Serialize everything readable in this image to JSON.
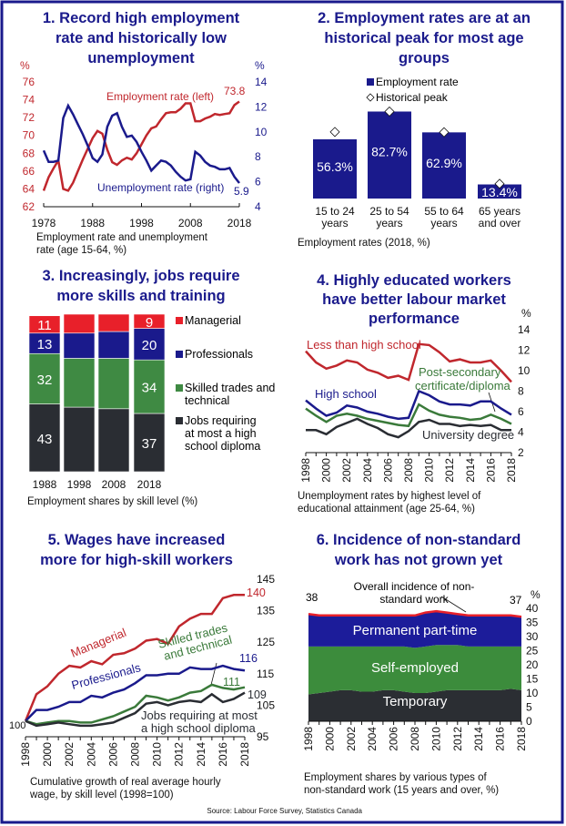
{
  "colors": {
    "navy": "#1a1a8c",
    "red": "#c0272d",
    "bright_red": "#e8202a",
    "green": "#3a7a3a",
    "green_fill": "#3f8a43",
    "dark": "#2a2d33"
  },
  "source": "Source: Labour Force Survey, Statistics Canada",
  "chart_data": [
    {
      "type": "line",
      "title": [
        "1. Record high employment",
        "rate and historically low",
        "unemployment"
      ],
      "caption": [
        "Employment rate and unemployment",
        "rate (age 15-64, %)"
      ],
      "x": [
        1978,
        1979,
        1980,
        1981,
        1982,
        1983,
        1984,
        1985,
        1986,
        1987,
        1988,
        1989,
        1990,
        1991,
        1992,
        1993,
        1994,
        1995,
        1996,
        1997,
        1998,
        1999,
        2000,
        2001,
        2002,
        2003,
        2004,
        2005,
        2006,
        2007,
        2008,
        2009,
        2010,
        2011,
        2012,
        2013,
        2014,
        2015,
        2016,
        2017,
        2018
      ],
      "xticks": [
        "1978",
        "1988",
        "1998",
        "2008",
        "2018"
      ],
      "ylim_left": [
        62,
        76
      ],
      "yticks_left": [
        "62",
        "64",
        "66",
        "68",
        "70",
        "72",
        "74",
        "76"
      ],
      "ylabel_left": "%",
      "ylim_right": [
        4,
        14
      ],
      "yticks_right": [
        "4",
        "6",
        "8",
        "10",
        "12",
        "14"
      ],
      "ylabel_right": "%",
      "series": [
        {
          "name": "Employment rate (left)",
          "axis": "left",
          "color": "#c0272d",
          "end_label": "73.8",
          "values": [
            63.8,
            65.3,
            66.3,
            67.2,
            64.0,
            63.8,
            64.7,
            66.0,
            67.3,
            68.5,
            69.7,
            70.5,
            70.2,
            68.4,
            67.0,
            66.7,
            67.2,
            67.5,
            67.3,
            68.0,
            69.0,
            70.0,
            70.8,
            71.0,
            71.8,
            72.5,
            72.6,
            72.6,
            73.0,
            73.6,
            73.6,
            71.6,
            71.6,
            71.9,
            72.1,
            72.4,
            72.3,
            72.4,
            72.5,
            73.4,
            73.8
          ]
        },
        {
          "name": "Unemployment rate (right)",
          "axis": "right",
          "color": "#1a1a8c",
          "end_label": "5.9",
          "values": [
            8.5,
            7.6,
            7.6,
            7.7,
            11.1,
            12.1,
            11.4,
            10.6,
            9.8,
            8.9,
            7.9,
            7.6,
            8.2,
            10.4,
            11.3,
            11.5,
            10.4,
            9.6,
            9.7,
            9.2,
            8.4,
            7.7,
            6.9,
            7.3,
            7.7,
            7.6,
            7.3,
            6.8,
            6.4,
            6.1,
            6.2,
            8.4,
            8.1,
            7.6,
            7.3,
            7.2,
            7.0,
            7.0,
            7.1,
            6.4,
            5.9
          ]
        }
      ]
    },
    {
      "type": "bar",
      "title": [
        "2. Employment rates are at an",
        "historical peak for most age",
        "groups"
      ],
      "caption": "Employment rates (2018, %)",
      "categories": [
        [
          "15 to 24",
          "years"
        ],
        [
          "25 to 54",
          "years"
        ],
        [
          "55 to 64",
          "years"
        ],
        [
          "65 years",
          "and over"
        ]
      ],
      "ylim": [
        0,
        100
      ],
      "series": [
        {
          "name": "Employment rate",
          "color": "#1a1a8c",
          "values": [
            56.3,
            82.7,
            62.9,
            13.4
          ],
          "labels": [
            "56.3%",
            "82.7%",
            "62.9%",
            "13.4%"
          ]
        },
        {
          "name": "Historical peak",
          "marker": "diamond",
          "values": [
            63.3,
            82.7,
            63.0,
            14.0
          ]
        }
      ]
    },
    {
      "type": "bar",
      "stacked": true,
      "title": [
        "3. Increasingly, jobs require",
        "more skills and training"
      ],
      "caption": "Employment shares by skill level (%)",
      "categories": [
        "1988",
        "1998",
        "2008",
        "2018"
      ],
      "ylim": [
        0,
        100
      ],
      "series": [
        {
          "name": "Jobs requiring at most a high school diploma",
          "legend": [
            "Jobs requiring",
            "at most a high",
            "school diploma"
          ],
          "color": "#2a2d33",
          "values": [
            43,
            41,
            40,
            37
          ],
          "labels": [
            "43",
            "",
            "",
            "37"
          ]
        },
        {
          "name": "Skilled trades and technical",
          "legend": [
            "Skilled trades and",
            "technical"
          ],
          "color": "#3f8a43",
          "values": [
            32,
            31,
            32,
            34
          ],
          "labels": [
            "32",
            "",
            "",
            "34"
          ]
        },
        {
          "name": "Professionals",
          "legend": [
            "Professionals"
          ],
          "color": "#1a1a8c",
          "values": [
            13,
            16,
            17,
            20
          ],
          "labels": [
            "13",
            "",
            "",
            "20"
          ]
        },
        {
          "name": "Managerial",
          "legend": [
            "Managerial"
          ],
          "color": "#e8202a",
          "values": [
            11,
            12,
            11,
            9
          ],
          "labels": [
            "11",
            "",
            "",
            "9"
          ]
        }
      ]
    },
    {
      "type": "line",
      "title": [
        "4. Highly educated workers",
        "have better labour market",
        "performance"
      ],
      "caption": [
        "Unemployment rates by highest level of",
        "educational attainment (age 25-64, %)"
      ],
      "x": [
        1998,
        1999,
        2000,
        2001,
        2002,
        2003,
        2004,
        2005,
        2006,
        2007,
        2008,
        2009,
        2010,
        2011,
        2012,
        2013,
        2014,
        2015,
        2016,
        2017,
        2018
      ],
      "xticks": [
        "1998",
        "2000",
        "2002",
        "2004",
        "2006",
        "2008",
        "2010",
        "2012",
        "2014",
        "2016",
        "2018"
      ],
      "ylim": [
        2,
        14
      ],
      "yticks": [
        "2",
        "4",
        "6",
        "8",
        "10",
        "12",
        "14"
      ],
      "ylabel": "%",
      "series": [
        {
          "name": "Less than high school",
          "label": [
            "Less than high school"
          ],
          "color": "#c0272d",
          "values": [
            11.9,
            10.8,
            10.2,
            10.5,
            11.0,
            10.8,
            10.1,
            9.8,
            9.3,
            9.5,
            9.1,
            12.6,
            12.5,
            11.8,
            10.9,
            11.1,
            10.8,
            10.8,
            11.0,
            10.0,
            8.9
          ]
        },
        {
          "name": "High school",
          "label": [
            "High school"
          ],
          "color": "#1a1a8c",
          "values": [
            7.1,
            6.3,
            5.6,
            5.9,
            6.6,
            6.4,
            6.0,
            5.8,
            5.5,
            5.3,
            5.4,
            8.0,
            7.6,
            7.0,
            6.7,
            6.7,
            6.6,
            7.0,
            7.0,
            6.3,
            5.7
          ]
        },
        {
          "name": "Post-secondary certificate/diploma",
          "label": [
            "Post-secondary",
            "certificate/diploma"
          ],
          "color": "#3a7a3a",
          "values": [
            6.3,
            5.6,
            5.0,
            5.6,
            5.8,
            5.6,
            5.3,
            5.1,
            4.9,
            4.7,
            4.6,
            6.7,
            6.1,
            5.7,
            5.5,
            5.4,
            5.2,
            5.3,
            5.7,
            5.3,
            4.8
          ]
        },
        {
          "name": "University degree",
          "label": [
            "University degree"
          ],
          "color": "#2a2d33",
          "values": [
            4.2,
            4.2,
            3.8,
            4.5,
            4.9,
            5.3,
            4.8,
            4.4,
            3.8,
            3.5,
            4.1,
            5.0,
            5.2,
            4.8,
            4.8,
            4.6,
            4.7,
            4.6,
            4.7,
            4.2,
            4.2
          ]
        }
      ]
    },
    {
      "type": "line",
      "title": [
        "5. Wages have increased",
        "more for high-skill workers"
      ],
      "caption": [
        "Cumulative growth of real average hourly",
        "wage, by skill level (1998=100)"
      ],
      "x": [
        1998,
        1999,
        2000,
        2001,
        2002,
        2003,
        2004,
        2005,
        2006,
        2007,
        2008,
        2009,
        2010,
        2011,
        2012,
        2013,
        2014,
        2015,
        2016,
        2017,
        2018
      ],
      "xticks": [
        "1998",
        "2000",
        "2002",
        "2004",
        "2006",
        "2008",
        "2010",
        "2012",
        "2014",
        "2016",
        "2018"
      ],
      "ylim": [
        95,
        145
      ],
      "yticks": [
        "95",
        "105",
        "115",
        "125",
        "135",
        "145"
      ],
      "start_label": "100",
      "series": [
        {
          "name": "Managerial",
          "label": [
            "Managerial"
          ],
          "end_label": "140",
          "color": "#c0272d",
          "values": [
            100,
            108.5,
            111,
            115,
            117.5,
            117,
            119,
            118,
            121,
            121.5,
            123,
            125.5,
            126,
            124.5,
            130,
            132.5,
            134,
            134,
            139,
            140,
            140
          ]
        },
        {
          "name": "Professionals",
          "label": [
            "Professionals"
          ],
          "end_label": "116",
          "color": "#1a1a8c",
          "values": [
            100,
            103.5,
            103.5,
            104.5,
            106,
            106,
            108,
            107.5,
            109,
            110,
            112,
            114.5,
            114.5,
            115,
            115,
            117,
            116.5,
            116.5,
            117.5,
            116.5,
            116
          ]
        },
        {
          "name": "Skilled trades and technical",
          "label": [
            "Skilled trades",
            "and technical"
          ],
          "end_label": "111",
          "color": "#3a7a3a",
          "values": [
            100,
            99,
            99.5,
            100,
            100,
            99.5,
            99.5,
            100.5,
            101.5,
            103,
            104.5,
            108,
            107.5,
            106.5,
            107.5,
            109,
            109.5,
            111.5,
            110.5,
            110,
            110.7
          ]
        },
        {
          "name": "Jobs requiring at most a high school diploma",
          "label": [
            "Jobs requiring at most",
            "a high school diploma"
          ],
          "end_label": "109",
          "color": "#2a2d33",
          "values": [
            100,
            98.5,
            99,
            99.5,
            99,
            98.5,
            98.5,
            99,
            99.5,
            101,
            102.5,
            105.5,
            106,
            105,
            106,
            106.5,
            106,
            108.5,
            106,
            107,
            109
          ]
        }
      ]
    },
    {
      "type": "area",
      "stacked": true,
      "title": [
        "6. Incidence of non-standard",
        "work has not grown yet"
      ],
      "caption": [
        "Employment shares by various types of",
        "non-standard work (15 years and over, %)"
      ],
      "x": [
        1998,
        1999,
        2000,
        2001,
        2002,
        2003,
        2004,
        2005,
        2006,
        2007,
        2008,
        2009,
        2010,
        2011,
        2012,
        2013,
        2014,
        2015,
        2016,
        2017,
        2018
      ],
      "xticks": [
        "1998",
        "2000",
        "2002",
        "2004",
        "2006",
        "2008",
        "2010",
        "2012",
        "2014",
        "2016",
        "2018"
      ],
      "ylim": [
        0,
        40
      ],
      "yticks": [
        "0",
        "5",
        "10",
        "15",
        "20",
        "25",
        "30",
        "35",
        "40"
      ],
      "ylabel": "%",
      "total_label": [
        "Overall incidence of non-",
        "standard work"
      ],
      "start_label": "38",
      "end_label": "37",
      "series": [
        {
          "name": "Temporary",
          "color": "#2b2e33",
          "values": [
            9.5,
            10,
            10.5,
            11,
            11,
            10.5,
            10.5,
            11,
            11,
            10.5,
            10,
            10,
            10.5,
            11,
            11,
            11,
            11,
            11,
            11,
            11.5,
            11
          ]
        },
        {
          "name": "Self-employed",
          "color": "#3c8c3c",
          "values": [
            17,
            16.5,
            16,
            15.5,
            15.5,
            16,
            16,
            15.5,
            15.5,
            16,
            16,
            16.5,
            16.5,
            16,
            16,
            15.5,
            15.5,
            15.5,
            15.5,
            15,
            15.5
          ]
        },
        {
          "name": "Permanent part-time",
          "color": "#1c1c9a",
          "values": [
            11.5,
            11,
            11,
            11,
            11,
            11,
            11,
            11,
            11,
            11,
            11.5,
            12,
            12,
            11.5,
            11,
            11,
            11,
            11,
            11,
            11,
            10.5
          ]
        }
      ]
    }
  ]
}
